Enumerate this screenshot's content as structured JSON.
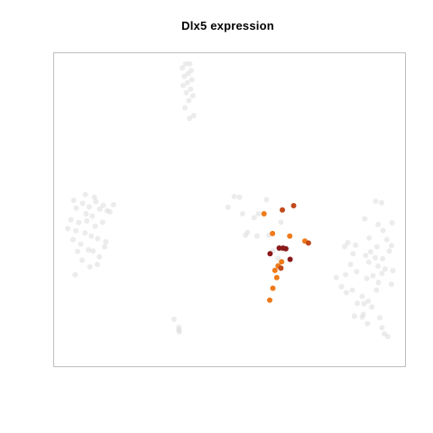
{
  "chart_data": {
    "type": "scatter",
    "title": "Dlx5 expression",
    "xlabel": "",
    "ylabel": "",
    "axes_visible": false,
    "grid": false,
    "legend": "none",
    "xlim": [
      0,
      100
    ],
    "ylim": [
      0,
      100
    ],
    "colors": {
      "none": "#d9d9d9",
      "medium": "#ee7a1a",
      "high": "#c2491b",
      "very_high": "#8b1a1a",
      "frame": "#bfbfbf"
    },
    "series": [
      {
        "name": "",
        "level": "none",
        "points": [
          [
            37.5,
            96.5
          ],
          [
            38.7,
            96.5
          ],
          [
            36.6,
            95.2
          ],
          [
            39.1,
            94.3
          ],
          [
            38.2,
            93.4
          ],
          [
            37.1,
            92.5
          ],
          [
            39.3,
            91.4
          ],
          [
            38.0,
            90.5
          ],
          [
            36.8,
            89.6
          ],
          [
            38.9,
            88.4
          ],
          [
            37.7,
            87.3
          ],
          [
            39.6,
            86.3
          ],
          [
            38.4,
            84.8
          ],
          [
            37.3,
            82.5
          ],
          [
            39.8,
            80.0
          ],
          [
            38.6,
            79.1
          ],
          [
            51.3,
            54.2
          ],
          [
            52.8,
            54.0
          ],
          [
            53.7,
            48.7
          ],
          [
            49.5,
            50.8
          ],
          [
            60.5,
            53.2
          ],
          [
            58.2,
            48.7
          ],
          [
            57.0,
            47.5
          ],
          [
            55.1,
            42.8
          ],
          [
            54.5,
            41.9
          ],
          [
            57.8,
            41.6
          ],
          [
            61.2,
            41.9
          ],
          [
            64.6,
            46.0
          ],
          [
            65.2,
            37.2
          ],
          [
            63.8,
            34.5
          ],
          [
            62.3,
            36.9
          ],
          [
            5.7,
            53.0
          ],
          [
            9.0,
            54.8
          ],
          [
            11.6,
            54.0
          ],
          [
            8.2,
            52.0
          ],
          [
            6.4,
            50.5
          ],
          [
            10.1,
            50.9
          ],
          [
            13.1,
            50.2
          ],
          [
            15.2,
            49.7
          ],
          [
            14.1,
            51.4
          ],
          [
            12.0,
            52.6
          ],
          [
            17.0,
            51.6
          ],
          [
            16.0,
            49.3
          ],
          [
            4.9,
            46.8
          ],
          [
            7.1,
            45.9
          ],
          [
            9.4,
            46.4
          ],
          [
            11.8,
            44.7
          ],
          [
            13.9,
            46.0
          ],
          [
            4.0,
            44.0
          ],
          [
            6.3,
            43.3
          ],
          [
            8.9,
            42.6
          ],
          [
            10.7,
            41.6
          ],
          [
            12.5,
            40.8
          ],
          [
            14.8,
            39.8
          ],
          [
            7.7,
            39.0
          ],
          [
            9.9,
            37.2
          ],
          [
            11.2,
            36.8
          ],
          [
            6.8,
            36.7
          ],
          [
            13.0,
            35.0
          ],
          [
            8.1,
            33.9
          ],
          [
            10.3,
            31.8
          ],
          [
            12.4,
            32.6
          ],
          [
            6.1,
            29.3
          ],
          [
            14.5,
            38.2
          ],
          [
            5.5,
            40.5
          ],
          [
            11.0,
            48.0
          ],
          [
            9.2,
            48.7
          ],
          [
            35.6,
            12.6
          ],
          [
            35.6,
            11.7
          ],
          [
            35.7,
            11.1
          ],
          [
            34.2,
            15.1
          ],
          [
            91.5,
            52.7
          ],
          [
            93.2,
            52.2
          ],
          [
            88.4,
            47.1
          ],
          [
            93.6,
            43.4
          ],
          [
            96.2,
            45.8
          ],
          [
            94.7,
            40.5
          ],
          [
            85.8,
            38.7
          ],
          [
            83.6,
            39.5
          ],
          [
            91.9,
            38.2
          ],
          [
            95.4,
            36.8
          ],
          [
            90.1,
            36.6
          ],
          [
            88.7,
            35.4
          ],
          [
            85.1,
            36.0
          ],
          [
            91.4,
            34.7
          ],
          [
            89.6,
            33.3
          ],
          [
            92.2,
            32.0
          ],
          [
            94.2,
            31.1
          ],
          [
            96.4,
            30.6
          ],
          [
            93.3,
            29.7
          ],
          [
            86.1,
            30.3
          ],
          [
            84.4,
            32.6
          ],
          [
            83.0,
            29.3
          ],
          [
            90.8,
            29.0
          ],
          [
            92.3,
            26.8
          ],
          [
            96.0,
            26.2
          ],
          [
            89.0,
            28.1
          ],
          [
            80.3,
            28.4
          ],
          [
            81.8,
            25.5
          ],
          [
            84.9,
            24.4
          ],
          [
            83.2,
            23.6
          ],
          [
            88.2,
            20.1
          ],
          [
            89.4,
            20.9
          ],
          [
            90.4,
            19.0
          ],
          [
            86.3,
            20.2
          ],
          [
            88.0,
            16.7
          ],
          [
            87.7,
            15.8
          ],
          [
            85.5,
            16.1
          ],
          [
            92.7,
            15.6
          ],
          [
            93.3,
            12.4
          ],
          [
            94.0,
            10.4
          ],
          [
            95.0,
            9.6
          ],
          [
            89.2,
            13.7
          ],
          [
            92.2,
            45.3
          ],
          [
            89.7,
            41.0
          ],
          [
            82.7,
            38.3
          ],
          [
            96.0,
            38.6
          ],
          [
            93.5,
            34.4
          ],
          [
            87.7,
            22.4
          ],
          [
            91.8,
            24.4
          ]
        ]
      },
      {
        "name": "",
        "level": "medium",
        "points": [
          [
            59.8,
            48.7
          ],
          [
            62.2,
            42.4
          ],
          [
            67.1,
            41.6
          ],
          [
            71.4,
            40.0
          ],
          [
            64.8,
            33.4
          ],
          [
            63.8,
            32.1
          ],
          [
            62.9,
            30.7
          ],
          [
            63.4,
            28.4
          ],
          [
            62.3,
            25.0
          ],
          [
            61.4,
            21.2
          ]
        ]
      },
      {
        "name": "",
        "level": "high",
        "points": [
          [
            65.0,
            49.9
          ],
          [
            68.2,
            51.3
          ],
          [
            72.4,
            39.4
          ],
          [
            64.6,
            31.4
          ]
        ]
      },
      {
        "name": "",
        "level": "very_high",
        "points": [
          [
            61.5,
            36.0
          ],
          [
            65.2,
            37.8
          ],
          [
            66.0,
            37.6
          ],
          [
            64.1,
            37.8
          ],
          [
            67.2,
            34.2
          ]
        ]
      }
    ]
  }
}
